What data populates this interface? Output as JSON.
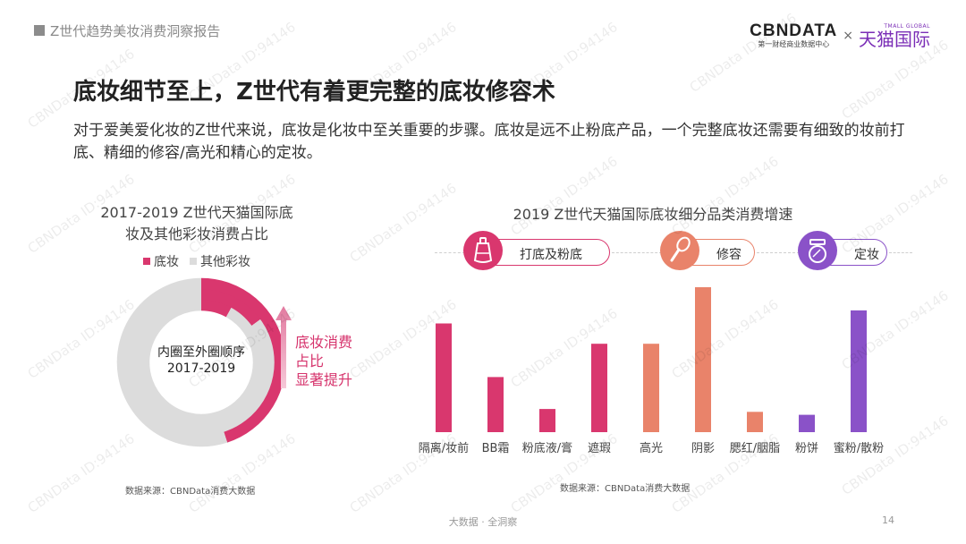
{
  "header": {
    "report_name": "Z世代趋势美妆消费洞察报告",
    "brand_main": "CBNDATA",
    "brand_sub": "第一财经商业数据中心",
    "brand_sep": "×",
    "brand_partner": "天猫国际",
    "brand_partner_small": "TMALL GLOBAL"
  },
  "headline": "底妆细节至上，Z世代有着更完整的底妆修容术",
  "intro": "对于爱美爱化妆的Z世代来说，底妆是化妆中至关重要的步骤。底妆是远不止粉底产品，一个完整底妆还需要有细致的妆前打底、精细的修容/高光和精心的定妆。",
  "left_chart": {
    "title_line1": "2017-2019 Z世代天猫国际底",
    "title_line2": "妆及其他彩妆消费占比",
    "legend": [
      {
        "label": "底妆",
        "color": "#d9376e"
      },
      {
        "label": "其他彩妆",
        "color": "#dcdcdc"
      }
    ],
    "center_line1": "内圈至外圈顺序",
    "center_line2": "2017-2019",
    "annotation_lines": [
      "底妆消费",
      "占比",
      "显著提升"
    ],
    "source": "数据来源：CBNData消费大数据"
  },
  "right_chart": {
    "title": "2019 Z世代天猫国际底妆细分品类消费增速",
    "groups": [
      {
        "label": "打底及粉底",
        "icon": "foundation-bottle-icon",
        "color": "#d9376e"
      },
      {
        "label": "修容",
        "icon": "makeup-brush-icon",
        "color": "#e9836a"
      },
      {
        "label": "定妆",
        "icon": "powder-compact-icon",
        "color": "#8a52c8"
      }
    ],
    "source": "数据来源：CBNData消费大数据"
  },
  "chart_data": [
    {
      "type": "pie",
      "title": "2017-2019 Z世代天猫国际底妆及其他彩妆消费占比",
      "note": "donut with rings ordered inner to outer: 2017-2019",
      "categories": [
        "底妆",
        "其他彩妆"
      ],
      "rings": [
        {
          "name": "2017",
          "values": [
            0.08,
            0.92
          ]
        },
        {
          "name": "2018",
          "values": [
            0.15,
            0.85
          ]
        },
        {
          "name": "2019",
          "values": [
            0.45,
            0.55
          ]
        }
      ]
    },
    {
      "type": "bar",
      "title": "2019 Z世代天猫国际底妆细分品类消费增速",
      "categories": [
        "隔离/妆前",
        "BB霜",
        "粉底液/膏",
        "遮瑕",
        "高光",
        "阴影",
        "腮红/胭脂",
        "粉饼",
        "蜜粉/散粉"
      ],
      "values": [
        75,
        38,
        16,
        61,
        61,
        100,
        14,
        12,
        84
      ],
      "value_scale": "relative (no axis printed)",
      "colors": [
        "#d9376e",
        "#d9376e",
        "#d9376e",
        "#d9376e",
        "#e9836a",
        "#e9836a",
        "#e9836a",
        "#8a52c8",
        "#8a52c8"
      ],
      "ylim": [
        0,
        100
      ]
    }
  ],
  "footer": {
    "tagline": "大数据 · 全洞察",
    "page_number": "14"
  },
  "watermark": "CBNData ID:94146"
}
